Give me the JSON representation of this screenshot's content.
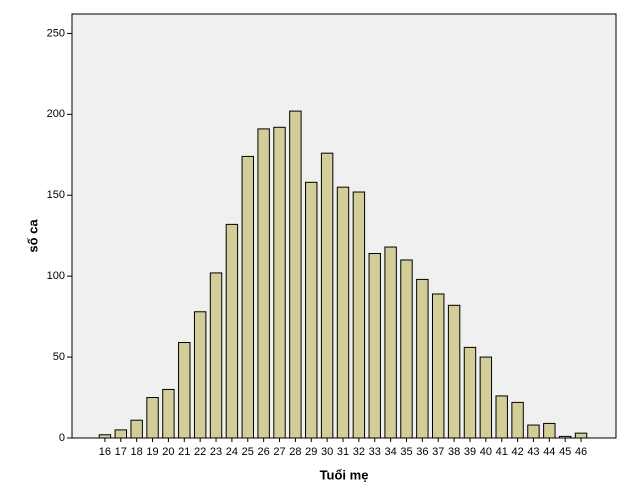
{
  "chart_data": {
    "type": "bar",
    "x_label": "Tuổi mẹ",
    "y_label": "số ca",
    "categories": [
      16,
      17,
      18,
      19,
      20,
      21,
      22,
      23,
      24,
      25,
      26,
      27,
      28,
      29,
      30,
      31,
      32,
      33,
      34,
      35,
      36,
      37,
      38,
      39,
      40,
      41,
      42,
      43,
      44,
      45,
      46
    ],
    "values": [
      2,
      5,
      11,
      25,
      30,
      59,
      78,
      102,
      132,
      174,
      191,
      192,
      202,
      158,
      176,
      155,
      152,
      114,
      118,
      110,
      98,
      89,
      82,
      56,
      50,
      26,
      22,
      8,
      9,
      1,
      3
    ],
    "color": "#d3ce97",
    "ylim": [
      0,
      262
    ],
    "yticks": [
      0,
      50,
      100,
      150,
      200,
      250
    ],
    "grid": false
  }
}
